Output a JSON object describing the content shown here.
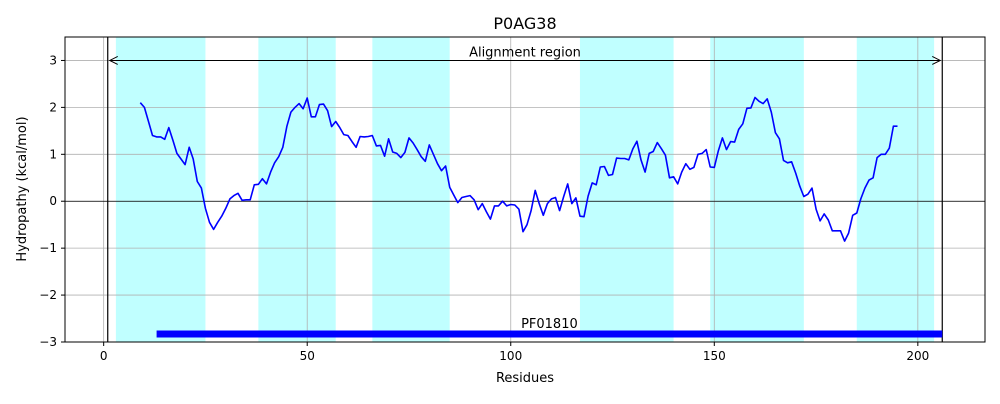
{
  "chart_data": {
    "type": "line",
    "title": "P0AG38",
    "xlabel": "Residues",
    "ylabel": "Hydropathy (kcal/mol)",
    "xlim": [
      -9.5,
      216.5
    ],
    "ylim": [
      -3,
      3.5
    ],
    "x_ticks": [
      0,
      50,
      100,
      150,
      200
    ],
    "y_ticks": [
      -3,
      -2,
      -1,
      0,
      1,
      2,
      3
    ],
    "tick_labels_x": [
      "0",
      "50",
      "100",
      "150",
      "200"
    ],
    "tick_labels_y": [
      "−3",
      "−2",
      "−1",
      "0",
      "1",
      "2",
      "3"
    ],
    "grid": true,
    "zero_line": 0,
    "colors": {
      "line": "#0000ff",
      "bands": "#c0ffff",
      "domain_bar": "#0000ff"
    },
    "hydropathy_bands": [
      [
        3,
        25
      ],
      [
        38,
        57
      ],
      [
        66,
        85
      ],
      [
        117,
        140
      ],
      [
        149,
        172
      ],
      [
        185,
        204
      ]
    ],
    "alignment_region": {
      "label": "Alignment region",
      "start": 1,
      "end": 206,
      "y": 3
    },
    "domain": {
      "label": "PF01810",
      "start": 13,
      "end": 206,
      "y": -2.83
    },
    "series": [
      {
        "x": [
          9,
          10,
          11,
          12,
          13,
          14,
          15,
          16,
          17,
          18,
          19,
          20,
          21,
          22,
          23,
          24,
          25,
          26,
          27,
          28,
          29,
          30,
          31,
          32,
          33,
          34,
          35,
          36,
          37,
          38,
          39,
          40,
          41,
          42,
          43,
          44,
          45,
          46,
          47,
          48,
          49,
          50,
          51,
          52,
          53,
          54,
          55,
          56,
          57,
          58,
          59,
          60,
          61,
          62,
          63,
          64,
          65,
          66,
          67,
          68,
          69,
          70,
          71,
          72,
          73,
          74,
          75,
          76,
          77,
          78,
          79,
          80,
          81,
          82,
          83,
          84,
          85,
          86,
          87,
          88,
          89,
          90,
          91,
          92,
          93,
          94,
          95,
          96,
          97,
          98,
          99,
          100,
          101,
          102,
          103,
          104,
          105,
          106,
          107,
          108,
          109,
          110,
          111,
          112,
          113,
          114,
          115,
          116,
          117,
          118,
          119,
          120,
          121,
          122,
          123,
          124,
          125,
          126,
          127,
          128,
          129,
          130,
          131,
          132,
          133,
          134,
          135,
          136,
          137,
          138,
          139,
          140,
          141,
          142,
          143,
          144,
          145,
          146,
          147,
          148,
          149,
          150,
          151,
          152,
          153,
          154,
          155,
          156,
          157,
          158,
          159,
          160,
          161,
          162,
          163,
          164,
          165,
          166,
          167,
          168,
          169,
          170,
          171,
          172,
          173,
          174,
          175,
          176,
          177,
          178,
          179,
          180,
          181,
          182,
          183,
          184,
          185,
          186,
          187,
          188,
          189,
          190,
          191,
          192,
          193,
          194,
          195
        ],
        "values": [
          2.1,
          2.0,
          1.7,
          1.4,
          1.37,
          1.37,
          1.32,
          1.57,
          1.3,
          1.02,
          0.9,
          0.78,
          1.15,
          0.9,
          0.42,
          0.28,
          -0.15,
          -0.45,
          -0.6,
          -0.45,
          -0.32,
          -0.15,
          0.05,
          0.12,
          0.17,
          0.02,
          0.03,
          0.03,
          0.35,
          0.36,
          0.48,
          0.37,
          0.62,
          0.82,
          0.95,
          1.15,
          1.6,
          1.9,
          2.0,
          2.08,
          1.97,
          2.2,
          1.8,
          1.8,
          2.06,
          2.07,
          1.93,
          1.59,
          1.7,
          1.57,
          1.42,
          1.4,
          1.27,
          1.15,
          1.38,
          1.37,
          1.38,
          1.4,
          1.18,
          1.19,
          0.96,
          1.33,
          1.05,
          1.02,
          0.93,
          1.04,
          1.35,
          1.24,
          1.1,
          0.95,
          0.85,
          1.2,
          1.0,
          0.8,
          0.65,
          0.75,
          0.3,
          0.13,
          -0.03,
          0.08,
          0.1,
          0.12,
          0.03,
          -0.18,
          -0.05,
          -0.22,
          -0.38,
          -0.1,
          -0.1,
          0.0,
          -0.1,
          -0.07,
          -0.08,
          -0.17,
          -0.65,
          -0.5,
          -0.2,
          0.23,
          -0.05,
          -0.3,
          -0.05,
          0.05,
          0.08,
          -0.2,
          0.1,
          0.37,
          -0.05,
          0.07,
          -0.32,
          -0.33,
          0.11,
          0.39,
          0.35,
          0.73,
          0.74,
          0.55,
          0.57,
          0.92,
          0.91,
          0.91,
          0.88,
          1.12,
          1.28,
          0.88,
          0.62,
          1.02,
          1.06,
          1.25,
          1.12,
          0.98,
          0.5,
          0.52,
          0.37,
          0.62,
          0.8,
          0.68,
          0.72,
          1.0,
          1.02,
          1.1,
          0.73,
          0.72,
          1.08,
          1.35,
          1.1,
          1.27,
          1.26,
          1.53,
          1.65,
          1.98,
          1.99,
          2.21,
          2.13,
          2.08,
          2.18,
          1.9,
          1.46,
          1.33,
          0.87,
          0.82,
          0.84,
          0.6,
          0.32,
          0.1,
          0.15,
          0.28,
          -0.17,
          -0.42,
          -0.27,
          -0.4,
          -0.63,
          -0.63,
          -0.63,
          -0.85,
          -0.68,
          -0.3,
          -0.25,
          0.05,
          0.28,
          0.45,
          0.5,
          0.93,
          1.0,
          1.0,
          1.13,
          1.6,
          1.6
        ]
      }
    ]
  }
}
